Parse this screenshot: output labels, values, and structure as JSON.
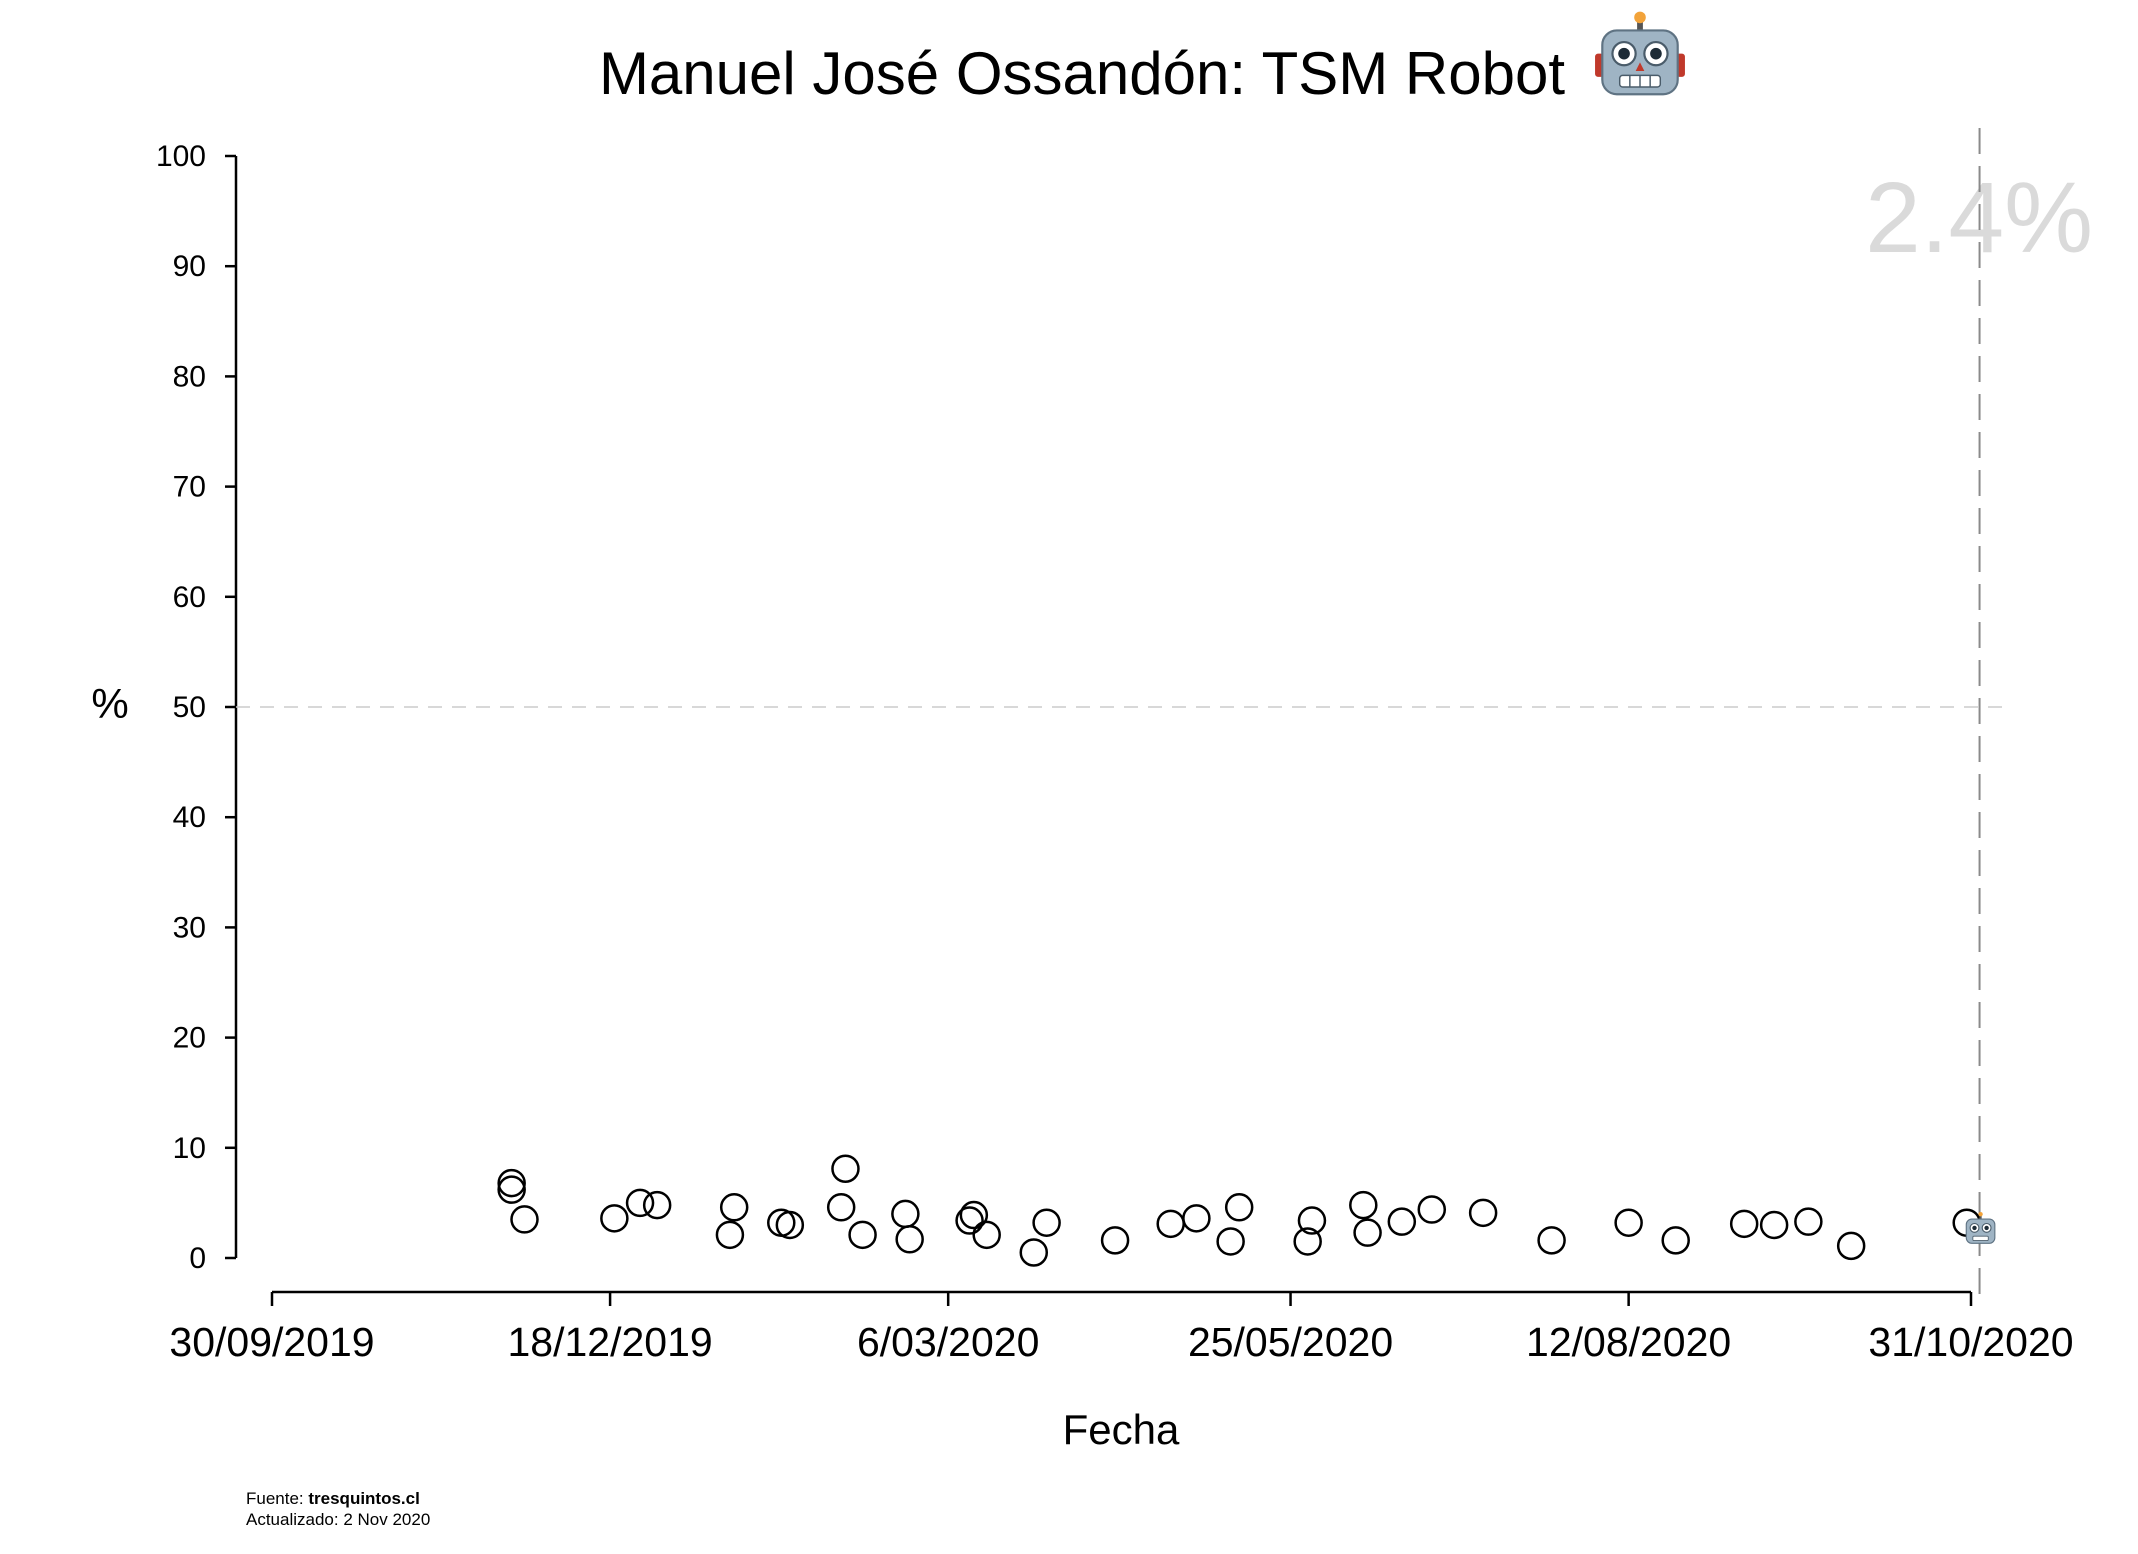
{
  "chart_data": {
    "type": "scatter",
    "title": "Manuel José Ossandón: TSM Robot",
    "title_icon": "robot-icon",
    "xlabel": "Fecha",
    "ylabel": "%",
    "ylim": [
      0,
      100
    ],
    "yticks": [
      0,
      10,
      20,
      30,
      40,
      50,
      60,
      70,
      80,
      90,
      100
    ],
    "xlim": [
      "2019-09-30",
      "2020-10-31"
    ],
    "xticks": [
      "2019-09-30",
      "2019-12-18",
      "2020-03-06",
      "2020-05-25",
      "2020-08-12",
      "2020-10-31"
    ],
    "xtick_labels": [
      "30/09/2019",
      "18/12/2019",
      "6/03/2020",
      "25/05/2020",
      "12/08/2020",
      "31/10/2020"
    ],
    "reference_line_y": 50,
    "current_date": "2020-11-02",
    "current_value_label": "2.4%",
    "current_value": 2.4,
    "current_marker_icon": "robot-icon",
    "marker_style": "open-circle",
    "grid": false,
    "points": [
      {
        "x": "2019-11-25",
        "y": 6.8
      },
      {
        "x": "2019-11-25",
        "y": 6.2
      },
      {
        "x": "2019-11-28",
        "y": 3.5
      },
      {
        "x": "2019-12-19",
        "y": 3.6
      },
      {
        "x": "2019-12-25",
        "y": 5.0
      },
      {
        "x": "2019-12-29",
        "y": 4.8
      },
      {
        "x": "2020-01-15",
        "y": 2.1
      },
      {
        "x": "2020-01-16",
        "y": 4.6
      },
      {
        "x": "2020-01-27",
        "y": 3.2
      },
      {
        "x": "2020-01-29",
        "y": 3.0
      },
      {
        "x": "2020-02-10",
        "y": 4.6
      },
      {
        "x": "2020-02-11",
        "y": 8.1
      },
      {
        "x": "2020-02-15",
        "y": 2.1
      },
      {
        "x": "2020-02-25",
        "y": 4.0
      },
      {
        "x": "2020-02-26",
        "y": 1.7
      },
      {
        "x": "2020-03-11",
        "y": 3.4
      },
      {
        "x": "2020-03-12",
        "y": 3.9
      },
      {
        "x": "2020-03-15",
        "y": 2.1
      },
      {
        "x": "2020-03-26",
        "y": 0.5
      },
      {
        "x": "2020-03-29",
        "y": 3.2
      },
      {
        "x": "2020-04-14",
        "y": 1.6
      },
      {
        "x": "2020-04-27",
        "y": 3.1
      },
      {
        "x": "2020-05-03",
        "y": 3.6
      },
      {
        "x": "2020-05-11",
        "y": 1.5
      },
      {
        "x": "2020-05-13",
        "y": 4.6
      },
      {
        "x": "2020-05-29",
        "y": 1.5
      },
      {
        "x": "2020-05-30",
        "y": 3.4
      },
      {
        "x": "2020-06-11",
        "y": 4.8
      },
      {
        "x": "2020-06-12",
        "y": 2.3
      },
      {
        "x": "2020-06-20",
        "y": 3.3
      },
      {
        "x": "2020-06-27",
        "y": 4.4
      },
      {
        "x": "2020-07-09",
        "y": 4.1
      },
      {
        "x": "2020-07-25",
        "y": 1.6
      },
      {
        "x": "2020-08-12",
        "y": 3.2
      },
      {
        "x": "2020-08-23",
        "y": 1.6
      },
      {
        "x": "2020-09-08",
        "y": 3.1
      },
      {
        "x": "2020-09-15",
        "y": 3.0
      },
      {
        "x": "2020-09-23",
        "y": 3.3
      },
      {
        "x": "2020-10-03",
        "y": 1.1
      },
      {
        "x": "2020-10-30",
        "y": 3.2
      }
    ]
  },
  "footer": {
    "source_prefix": "Fuente: ",
    "source_name": "tresquintos.cl",
    "updated": "Actualizado: 2 Nov 2020"
  }
}
